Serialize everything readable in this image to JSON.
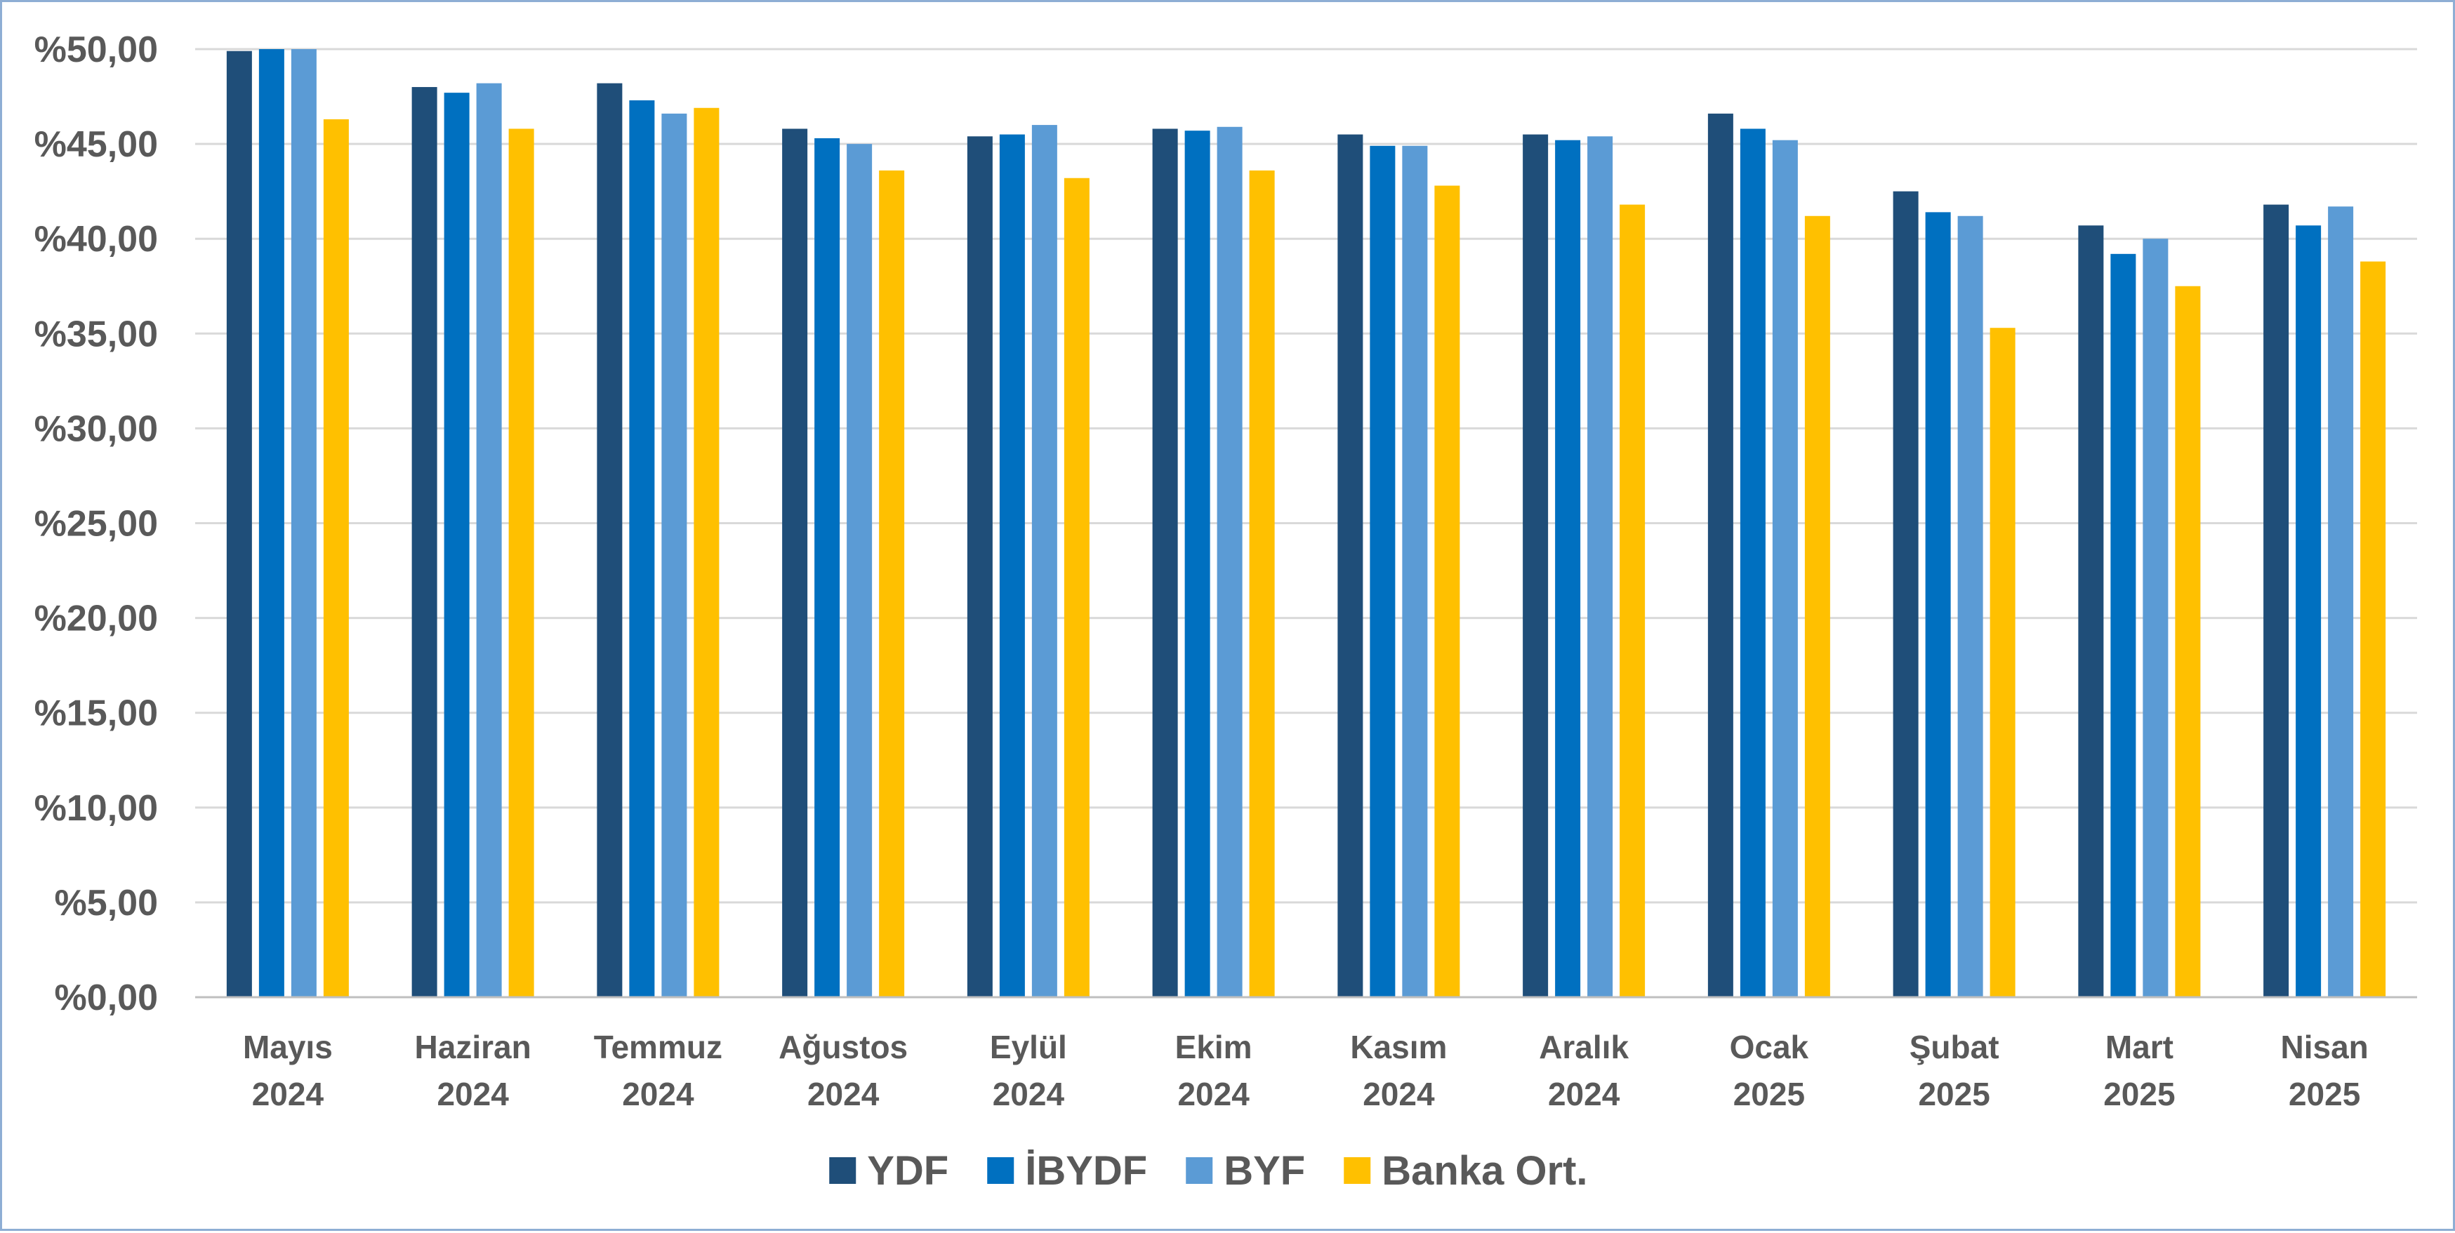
{
  "chart_data": {
    "type": "bar",
    "categories": [
      [
        "Mayıs",
        "2024"
      ],
      [
        "Haziran",
        "2024"
      ],
      [
        "Temmuz",
        "2024"
      ],
      [
        "Ağustos",
        "2024"
      ],
      [
        "Eylül",
        "2024"
      ],
      [
        "Ekim",
        "2024"
      ],
      [
        "Kasım",
        "2024"
      ],
      [
        "Aralık",
        "2024"
      ],
      [
        "Ocak",
        "2025"
      ],
      [
        "Şubat",
        "2025"
      ],
      [
        "Mart",
        "2025"
      ],
      [
        "Nisan",
        "2025"
      ]
    ],
    "series": [
      {
        "name": "YDF",
        "color": "#1f4e79",
        "values": [
          49.9,
          48.0,
          48.2,
          45.8,
          45.4,
          45.8,
          45.5,
          45.5,
          46.6,
          42.5,
          40.7,
          41.8
        ]
      },
      {
        "name": "İBYDF",
        "color": "#0070c0",
        "values": [
          50.0,
          47.7,
          47.3,
          45.3,
          45.5,
          45.7,
          44.9,
          45.2,
          45.8,
          41.4,
          39.2,
          40.7
        ]
      },
      {
        "name": "BYF",
        "color": "#5b9bd5",
        "values": [
          50.0,
          48.2,
          46.6,
          45.0,
          46.0,
          45.9,
          44.9,
          45.4,
          45.2,
          41.2,
          40.0,
          41.7
        ]
      },
      {
        "name": "Banka Ort.",
        "color": "#ffc000",
        "values": [
          46.3,
          45.8,
          46.9,
          43.6,
          43.2,
          43.6,
          42.8,
          41.8,
          41.2,
          35.3,
          37.5,
          38.8
        ]
      }
    ],
    "yaxis": {
      "min": 0,
      "max": 50,
      "step": 5,
      "tick_labels": [
        "%0,00",
        "%5,00",
        "%10,00",
        "%15,00",
        "%20,00",
        "%25,00",
        "%30,00",
        "%35,00",
        "%40,00",
        "%45,00",
        "%50,00"
      ]
    },
    "title": "",
    "xlabel": "",
    "ylabel": "",
    "grid": "horizontal",
    "legend_position": "bottom",
    "colors": {
      "grid": "#d9d9d9",
      "axis": "#bfbfbf",
      "text": "#595959",
      "frame": "#8eaed4"
    }
  }
}
